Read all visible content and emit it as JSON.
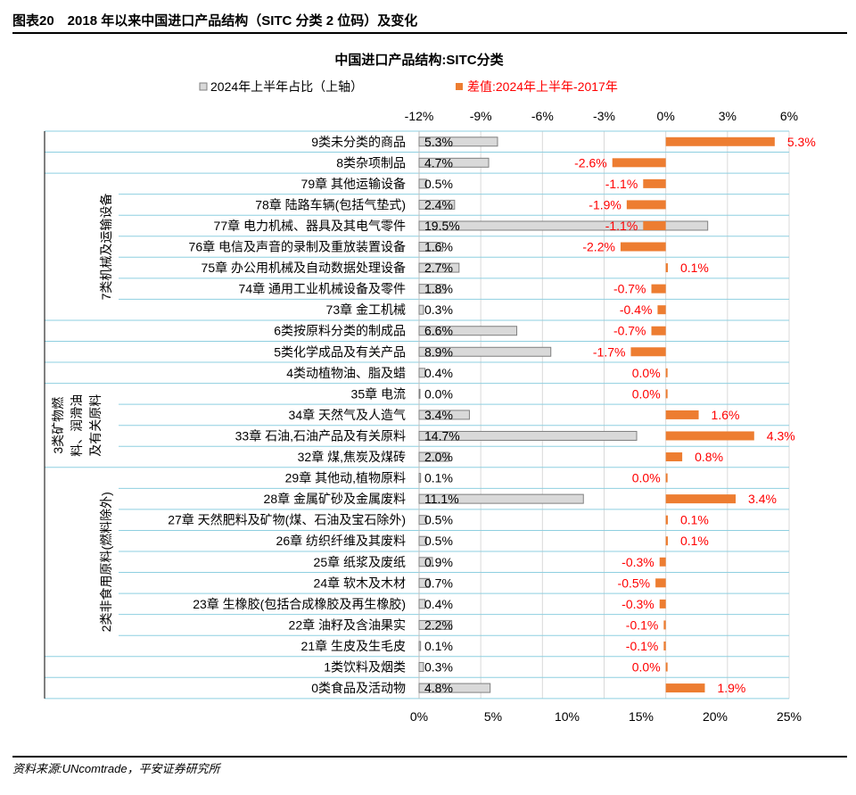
{
  "header": {
    "title": "图表20　2018 年以来中国进口产品结构（SITC 分类 2 位码）及变化"
  },
  "source": "资料来源:UNcomtrade，平安证券研究所",
  "chart_data": {
    "type": "bar",
    "title": "中国进口产品结构:SITC分类",
    "legend_placement": "top",
    "series": [
      {
        "name": "2024年上半年占比（上轴）",
        "axis": "bottom",
        "color": "#d9d9d9",
        "stroke": "#7f7f7f",
        "values": [
          5.3,
          4.7,
          0.5,
          2.4,
          19.5,
          1.6,
          2.7,
          1.8,
          0.3,
          6.6,
          8.9,
          0.4,
          0.0,
          3.4,
          14.7,
          2.0,
          0.1,
          11.1,
          0.5,
          0.5,
          0.9,
          0.7,
          0.4,
          2.2,
          0.1,
          0.3,
          4.8
        ],
        "labels": [
          "5.3%",
          "4.7%",
          "0.5%",
          "2.4%",
          "19.5%",
          "1.6%",
          "2.7%",
          "1.8%",
          "0.3%",
          "6.6%",
          "8.9%",
          "0.4%",
          "0.0%",
          "3.4%",
          "14.7%",
          "2.0%",
          "0.1%",
          "11.1%",
          "0.5%",
          "0.5%",
          "0.9%",
          "0.7%",
          "0.4%",
          "2.2%",
          "0.1%",
          "0.3%",
          "4.8%"
        ]
      },
      {
        "name": "差值:2024年上半年-2017年",
        "axis": "top",
        "color": "#ed7d31",
        "values": [
          5.3,
          -2.6,
          -1.1,
          -1.9,
          -1.1,
          -2.2,
          0.1,
          -0.7,
          -0.4,
          -0.7,
          -1.7,
          0.0,
          0.0,
          1.6,
          4.3,
          0.8,
          0.0,
          3.4,
          0.1,
          0.1,
          -0.3,
          -0.5,
          -0.3,
          -0.1,
          -0.1,
          0.0,
          1.9
        ],
        "labels": [
          "5.3%",
          "-2.6%",
          "-1.1%",
          "-1.9%",
          "-1.1%",
          "-2.2%",
          "0.1%",
          "-0.7%",
          "-0.4%",
          "-0.7%",
          "-1.7%",
          "0.0%",
          "0.0%",
          "1.6%",
          "4.3%",
          "0.8%",
          "0.0%",
          "3.4%",
          "0.1%",
          "0.1%",
          "-0.3%",
          "-0.5%",
          "-0.3%",
          "-0.1%",
          "-0.1%",
          "0.0%",
          "1.9%"
        ]
      }
    ],
    "categories": [
      "9类未分类的商品",
      "8类杂项制品",
      "79章 其他运输设备",
      "78章 陆路车辆(包括气垫式)",
      "77章 电力机械、器具及其电气零件",
      "76章 电信及声音的录制及重放装置设备",
      "75章 办公用机械及自动数据处理设备",
      "74章 通用工业机械设备及零件",
      "73章 金工机械",
      "6类按原料分类的制成品",
      "5类化学成品及有关产品",
      "4类动植物油、脂及蜡",
      "35章 电流",
      "34章 天然气及人造气",
      "33章 石油,石油产品及有关原料",
      "32章 煤,焦炭及煤砖",
      "29章 其他动,植物原料",
      "28章 金属矿砂及金属废料",
      "27章 天然肥料及矿物(煤、石油及宝石除外)",
      "26章 纺织纤维及其废料",
      "25章 纸浆及废纸",
      "24章 软木及木材",
      "23章 生橡胶(包括合成橡胶及再生橡胶)",
      "22章 油籽及含油果实",
      "21章 生皮及生毛皮",
      "1类饮料及烟类",
      "0类食品及活动物"
    ],
    "groups": [
      {
        "label": "7类机械及运输设备",
        "lines": [
          "7类机械及运输设备"
        ],
        "start": 2,
        "end": 8
      },
      {
        "label": "3类矿物燃料、润滑油及有关原料",
        "lines": [
          "3类矿物燃",
          "料、润滑油",
          "及有关原料"
        ],
        "start": 12,
        "end": 15
      },
      {
        "label": "2类非食用原料(燃料除外)",
        "lines": [
          "2类非食用原料(燃料除外)"
        ],
        "start": 16,
        "end": 24
      }
    ],
    "bottom_axis": {
      "min": 0,
      "max": 25,
      "ticks": [
        0,
        5,
        10,
        15,
        20,
        25
      ],
      "tick_labels": [
        "0%",
        "5%",
        "10%",
        "15%",
        "20%",
        "25%"
      ]
    },
    "top_axis": {
      "min": -12,
      "max": 6,
      "ticks": [
        -12,
        -9,
        -6,
        -3,
        0,
        3,
        6
      ],
      "tick_labels": [
        "-12%",
        "-9%",
        "-6%",
        "-3%",
        "0%",
        "3%",
        "6%"
      ]
    },
    "grid": true,
    "colors": {
      "row_line": "#8ecfe0",
      "diff_label": "#ff0000"
    }
  }
}
